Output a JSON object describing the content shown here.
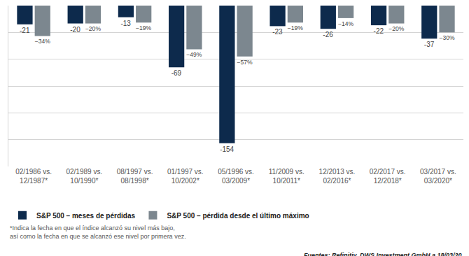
{
  "chart_data": {
    "type": "bar",
    "categories": [
      "02/1986 vs. 12/1987*",
      "02/1989 vs. 10/1990*",
      "08/1997 vs. 08/1998*",
      "01/1997 vs. 10/2002*",
      "05/1996 vs. 03/2009*",
      "11/2009 vs. 10/2011*",
      "12/2013 vs. 02/2016*",
      "02/2017 vs. 12/2018*",
      "03/2017 vs. 03/2020*"
    ],
    "series": [
      {
        "name": "S&P 500 – meses de pérdidas",
        "color": "#0d2a4c",
        "values": [
          -21,
          -20,
          -13,
          -69,
          -154,
          -23,
          -26,
          -22,
          -37
        ]
      },
      {
        "name": "S&P 500 – pérdida desde el último máximo",
        "color": "#7c878f",
        "values": [
          -34,
          -20,
          -19,
          -49,
          -57,
          -19,
          -14,
          -20,
          -30
        ],
        "value_labels": [
          "−34%",
          "−20%",
          "−19%",
          "−49%",
          "−57%",
          "−19%",
          "−14%",
          "−20%",
          "−30%"
        ]
      }
    ],
    "ylim": [
      -180,
      0
    ],
    "yticks": [
      -180,
      -150,
      -120,
      -90,
      -60,
      -30,
      0
    ],
    "grid": true,
    "data_labels": true,
    "tick_labels": "x",
    "legend": "bottom left",
    "footnote": [
      "*Indica la fecha en que el índice alcanzó su nivel más bajo,",
      "así como la fecha en que se alcanzó ese nivel por primera vez."
    ],
    "source": "Fuentes: Refinitiv, DWS Investment GmbH a 18/03/20"
  }
}
